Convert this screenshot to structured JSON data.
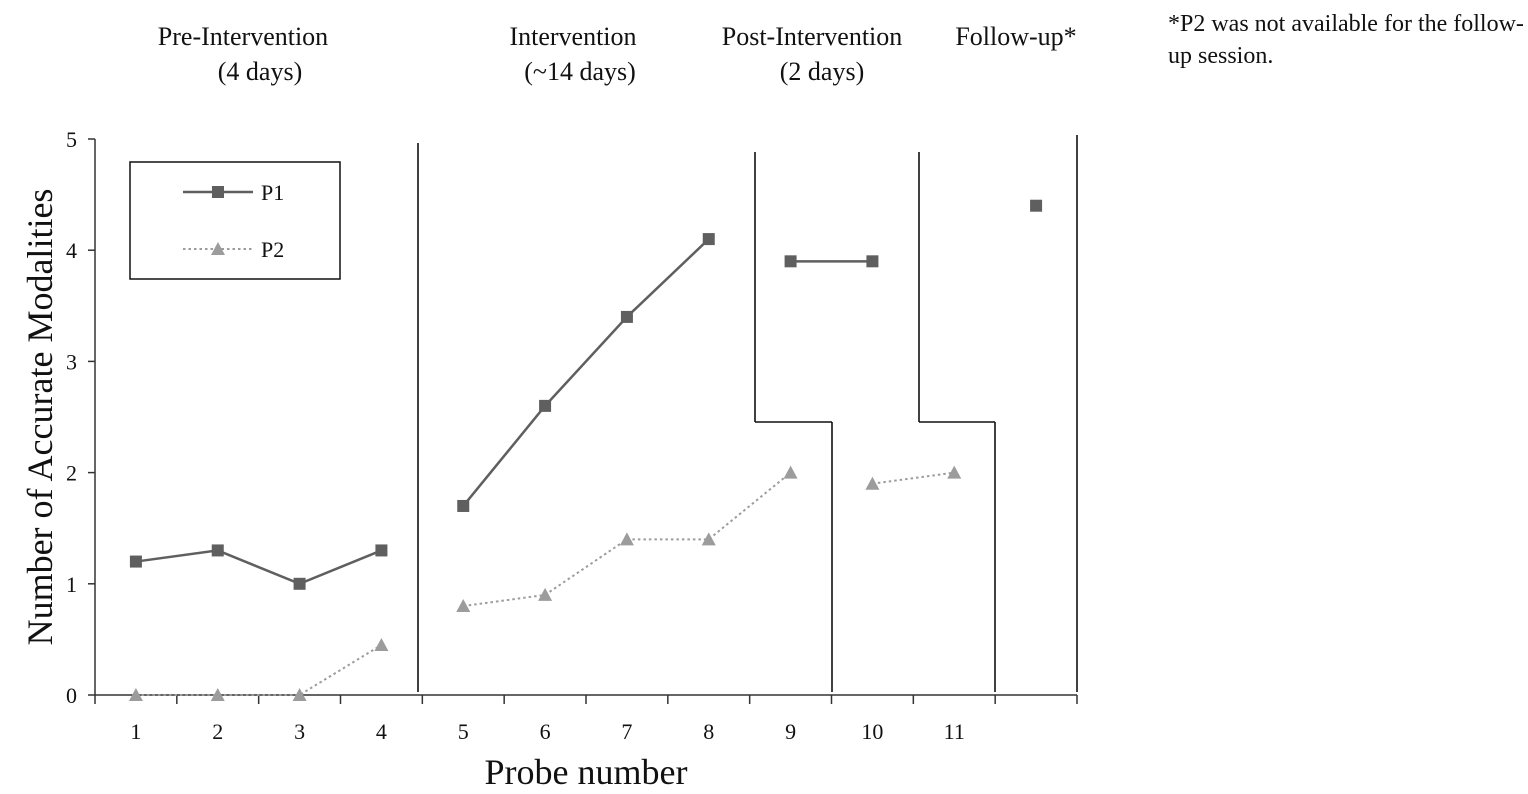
{
  "footnote": "*P2 was not available for the follow-up session.",
  "phases": [
    {
      "line1": "Pre-Intervention",
      "line2": "(4 days)"
    },
    {
      "line1": "Intervention",
      "line2": "(~14 days)"
    },
    {
      "line1": "Post-Intervention",
      "line2": "(2 days)"
    },
    {
      "line1": "Follow-up*",
      "line2": ""
    }
  ],
  "colors": {
    "p1": "#5f5f5f",
    "p2": "#9c9c9c",
    "axis": "#333333",
    "phase_line": "#111111"
  },
  "chart_data": {
    "type": "line",
    "xlabel": "Probe number",
    "ylabel": "Number of Accurate Modalities",
    "ylim": [
      0,
      5
    ],
    "yticks": [
      "0",
      "1",
      "2",
      "3",
      "4",
      "5"
    ],
    "categories": [
      "1",
      "2",
      "3",
      "4",
      "5",
      "6",
      "7",
      "8",
      "9",
      "10",
      "11",
      ""
    ],
    "legend_position": "top-left",
    "grid": false,
    "series": [
      {
        "name": "P1",
        "marker": "square",
        "line_style": "solid",
        "points": [
          {
            "x": 1,
            "y": 1.2
          },
          {
            "x": 2,
            "y": 1.3
          },
          {
            "x": 3,
            "y": 1.0
          },
          {
            "x": 4,
            "y": 1.3
          },
          {
            "x": 5,
            "y": 1.7
          },
          {
            "x": 6,
            "y": 2.6
          },
          {
            "x": 7,
            "y": 3.4
          },
          {
            "x": 8,
            "y": 4.1
          },
          {
            "x": 9,
            "y": 3.9
          },
          {
            "x": 10,
            "y": 3.9
          },
          {
            "x": 12,
            "y": 4.4
          }
        ],
        "segments": [
          [
            1,
            4
          ],
          [
            5,
            8
          ],
          [
            9,
            10
          ],
          [
            12,
            12
          ]
        ]
      },
      {
        "name": "P2",
        "marker": "triangle",
        "line_style": "dotted",
        "points": [
          {
            "x": 1,
            "y": 0.0
          },
          {
            "x": 2,
            "y": 0.0
          },
          {
            "x": 3,
            "y": 0.0
          },
          {
            "x": 4,
            "y": 0.45
          },
          {
            "x": 5,
            "y": 0.8
          },
          {
            "x": 6,
            "y": 0.9
          },
          {
            "x": 7,
            "y": 1.4
          },
          {
            "x": 8,
            "y": 1.4
          },
          {
            "x": 9,
            "y": 2.0
          },
          {
            "x": 10,
            "y": 1.9
          },
          {
            "x": 11,
            "y": 2.0
          }
        ],
        "segments": [
          [
            1,
            4
          ],
          [
            5,
            9
          ],
          [
            10,
            11
          ]
        ]
      }
    ]
  }
}
